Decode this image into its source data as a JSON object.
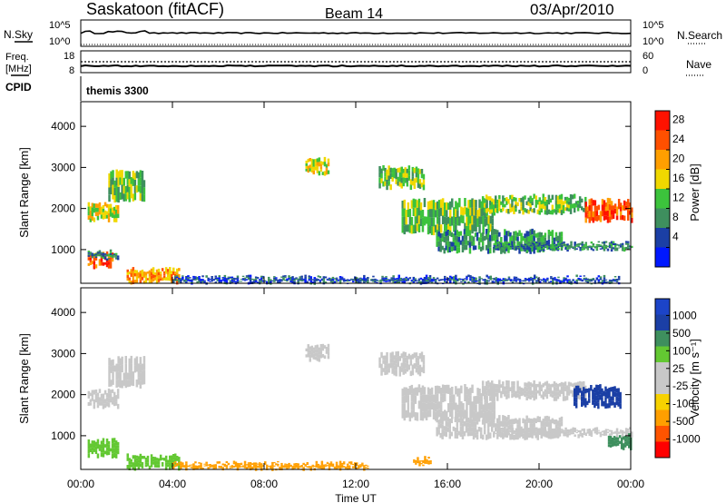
{
  "header": {
    "title": "Saskatoon (fitACF)",
    "beam": "Beam 14",
    "date": "03/Apr/2010"
  },
  "top_panels": {
    "nsky_label": "N.Sky",
    "nsky_ticks": [
      "10^5",
      "10^0"
    ],
    "nsearch_label": "N.Search",
    "nsearch_ticks": [
      "10^5",
      "10^0"
    ],
    "freq_label_1": "Freq.",
    "freq_label_2": "[MHz]",
    "freq_ticks": [
      "18",
      "8"
    ],
    "nave_label": "Nave",
    "nave_ticks": [
      "60",
      "0"
    ],
    "cpid_label": "CPID",
    "cpid_value": "themis 3300"
  },
  "colors": {
    "power_scale": [
      "#0018ff",
      "#1b3fa5",
      "#3e8f5e",
      "#3cc33c",
      "#f0d800",
      "#ff9f00",
      "#ff5000",
      "#ff1200"
    ],
    "velocity_scale": [
      "#ff0000",
      "#ff5400",
      "#ff9f00",
      "#f7d200",
      "#c8c8c8",
      "#c8c8c8",
      "#63c832",
      "#3e8f5e",
      "#1b3fa5",
      "#1c44c8"
    ],
    "trace": "#000000"
  },
  "power_colorbar": {
    "label": "Power [dB]",
    "ticks": [
      "28",
      "24",
      "20",
      "16",
      "12",
      "8",
      "4"
    ]
  },
  "velocity_colorbar": {
    "label": "Velocity [m s⁻¹]",
    "ticks": [
      "1000",
      "500",
      "100",
      "25",
      "-25",
      "-100",
      "-500",
      "-1000"
    ]
  },
  "chart_data": [
    {
      "type": "heatmap",
      "panel": "power",
      "ylabel": "Slant Range [km]",
      "xlabel": "Time UT",
      "xticks": [
        "00:00",
        "04:00",
        "08:00",
        "12:00",
        "16:00",
        "20:00",
        "00:00"
      ],
      "yticks": [
        1000,
        2000,
        3000,
        4000
      ],
      "xlim": [
        0,
        24
      ],
      "ylim": [
        180,
        4600
      ],
      "units": "dB",
      "regions": [
        {
          "t": [
            0.3,
            1.4
          ],
          "r": [
            580,
            920
          ],
          "level": 28
        },
        {
          "t": [
            0.3,
            1.6
          ],
          "r": [
            780,
            950
          ],
          "level": 12
        },
        {
          "t": [
            0.3,
            1.6
          ],
          "r": [
            1700,
            2100
          ],
          "level": 20
        },
        {
          "t": [
            1.2,
            2.8
          ],
          "r": [
            2200,
            2900
          ],
          "level": 16
        },
        {
          "t": [
            2.0,
            4.3
          ],
          "r": [
            200,
            520
          ],
          "level": 24
        },
        {
          "t": [
            4.0,
            12.5
          ],
          "r": [
            200,
            330
          ],
          "level": 8
        },
        {
          "t": [
            9.8,
            10.8
          ],
          "r": [
            2850,
            3200
          ],
          "level": 20
        },
        {
          "t": [
            13.0,
            15.0
          ],
          "r": [
            2500,
            3000
          ],
          "level": 16
        },
        {
          "t": [
            14.0,
            18.0
          ],
          "r": [
            1400,
            2200
          ],
          "level": 16
        },
        {
          "t": [
            15.5,
            21.0
          ],
          "r": [
            950,
            1450
          ],
          "level": 12
        },
        {
          "t": [
            17.5,
            22.0
          ],
          "r": [
            1900,
            2300
          ],
          "level": 16
        },
        {
          "t": [
            22.0,
            24.0
          ],
          "r": [
            1700,
            2200
          ],
          "level": 28
        },
        {
          "t": [
            18.0,
            24.0
          ],
          "r": [
            1000,
            1150
          ],
          "level": 12
        },
        {
          "t": [
            12.0,
            23.5
          ],
          "r": [
            200,
            330
          ],
          "level": 8
        }
      ]
    },
    {
      "type": "heatmap",
      "panel": "velocity",
      "ylabel": "Slant Range [km]",
      "xlabel": "Time UT",
      "xticks": [
        "00:00",
        "04:00",
        "08:00",
        "12:00",
        "16:00",
        "20:00",
        "00:00"
      ],
      "yticks": [
        1000,
        2000,
        3000,
        4000
      ],
      "xlim": [
        0,
        24
      ],
      "ylim": [
        180,
        4600
      ],
      "units": "m s-1",
      "regions": [
        {
          "t": [
            0.3,
            1.6
          ],
          "r": [
            500,
            900
          ],
          "level": 100
        },
        {
          "t": [
            0.3,
            1.6
          ],
          "r": [
            1700,
            2100
          ],
          "level": 0
        },
        {
          "t": [
            1.2,
            2.8
          ],
          "r": [
            2200,
            2900
          ],
          "level": 0
        },
        {
          "t": [
            2.0,
            4.3
          ],
          "r": [
            200,
            520
          ],
          "level": 100
        },
        {
          "t": [
            4.0,
            12.5
          ],
          "r": [
            200,
            330
          ],
          "level": -100
        },
        {
          "t": [
            9.8,
            10.8
          ],
          "r": [
            2850,
            3200
          ],
          "level": 0
        },
        {
          "t": [
            13.0,
            15.0
          ],
          "r": [
            2500,
            3000
          ],
          "level": 0
        },
        {
          "t": [
            14.0,
            18.0
          ],
          "r": [
            1400,
            2200
          ],
          "level": 0
        },
        {
          "t": [
            15.5,
            21.0
          ],
          "r": [
            950,
            1450
          ],
          "level": 0
        },
        {
          "t": [
            17.5,
            22.0
          ],
          "r": [
            1900,
            2300
          ],
          "level": 0
        },
        {
          "t": [
            21.5,
            23.5
          ],
          "r": [
            1700,
            2200
          ],
          "level": 800
        },
        {
          "t": [
            18.0,
            24.0
          ],
          "r": [
            1000,
            1150
          ],
          "level": 0
        },
        {
          "t": [
            23.0,
            24.0
          ],
          "r": [
            700,
            1000
          ],
          "level": 300
        },
        {
          "t": [
            14.5,
            15.3
          ],
          "r": [
            300,
            450
          ],
          "level": -100
        }
      ]
    }
  ]
}
